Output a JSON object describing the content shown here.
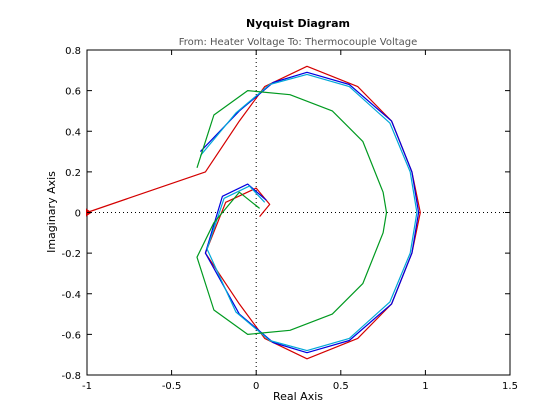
{
  "chart_data": {
    "type": "line",
    "title": "Nyquist Diagram",
    "subtitle": "From: Heater Voltage  To: Thermocouple Voltage",
    "xlabel": "Real Axis",
    "ylabel": "Imaginary Axis",
    "xlim": [
      -1,
      1.5
    ],
    "ylim": [
      -0.8,
      0.8
    ],
    "xticks": [
      -1,
      -0.5,
      0,
      0.5,
      1,
      1.5
    ],
    "yticks": [
      -0.8,
      -0.6,
      -0.4,
      -0.2,
      0,
      0.2,
      0.4,
      0.6,
      0.8
    ],
    "xtick_labels": [
      "-1",
      "-0.5",
      "0",
      "0.5",
      "1",
      "1.5"
    ],
    "ytick_labels": [
      "-0.8",
      "-0.6",
      "-0.4",
      "-0.2",
      "0",
      "0.2",
      "0.4",
      "0.6",
      "0.8"
    ],
    "grid": false,
    "reference_lines": {
      "x": 0,
      "y": 0
    },
    "critical_point": [
      -1,
      0
    ],
    "series": [
      {
        "color": "#d40000",
        "points": [
          [
            -1,
            0
          ],
          [
            -0.3,
            0.2
          ],
          [
            -0.1,
            0.45
          ],
          [
            0.05,
            0.62
          ],
          [
            0.3,
            0.72
          ],
          [
            0.6,
            0.62
          ],
          [
            0.8,
            0.45
          ],
          [
            0.92,
            0.2
          ],
          [
            0.97,
            0
          ],
          [
            0.92,
            -0.2
          ],
          [
            0.8,
            -0.45
          ],
          [
            0.6,
            -0.62
          ],
          [
            0.3,
            -0.72
          ],
          [
            0.05,
            -0.62
          ],
          [
            -0.1,
            -0.45
          ],
          [
            -0.3,
            -0.2
          ],
          [
            -0.18,
            0.05
          ],
          [
            0,
            0.12
          ],
          [
            0.08,
            0.04
          ],
          [
            0.02,
            -0.02
          ]
        ]
      },
      {
        "color": "#0000e0",
        "points": [
          [
            -0.33,
            0.3
          ],
          [
            -0.1,
            0.5
          ],
          [
            0.1,
            0.64
          ],
          [
            0.3,
            0.69
          ],
          [
            0.55,
            0.63
          ],
          [
            0.8,
            0.45
          ],
          [
            0.92,
            0.2
          ],
          [
            0.96,
            0
          ],
          [
            0.92,
            -0.2
          ],
          [
            0.8,
            -0.45
          ],
          [
            0.55,
            -0.63
          ],
          [
            0.3,
            -0.69
          ],
          [
            0.1,
            -0.64
          ],
          [
            -0.1,
            -0.5
          ],
          [
            -0.3,
            -0.2
          ],
          [
            -0.2,
            0.08
          ],
          [
            -0.05,
            0.14
          ],
          [
            0.06,
            0.06
          ]
        ]
      },
      {
        "color": "#00a8d8",
        "points": [
          [
            -0.33,
            0.28
          ],
          [
            -0.12,
            0.49
          ],
          [
            0.08,
            0.63
          ],
          [
            0.3,
            0.68
          ],
          [
            0.55,
            0.62
          ],
          [
            0.79,
            0.44
          ],
          [
            0.91,
            0.2
          ],
          [
            0.95,
            0
          ],
          [
            0.91,
            -0.2
          ],
          [
            0.79,
            -0.44
          ],
          [
            0.55,
            -0.62
          ],
          [
            0.3,
            -0.68
          ],
          [
            0.08,
            -0.63
          ],
          [
            -0.12,
            -0.49
          ],
          [
            -0.29,
            -0.18
          ],
          [
            -0.19,
            0.07
          ],
          [
            -0.04,
            0.13
          ],
          [
            0.05,
            0.05
          ]
        ]
      },
      {
        "color": "#009a20",
        "points": [
          [
            -0.35,
            0.22
          ],
          [
            -0.25,
            0.48
          ],
          [
            -0.05,
            0.6
          ],
          [
            0.2,
            0.58
          ],
          [
            0.45,
            0.5
          ],
          [
            0.63,
            0.35
          ],
          [
            0.75,
            0.1
          ],
          [
            0.77,
            0
          ],
          [
            0.75,
            -0.1
          ],
          [
            0.63,
            -0.35
          ],
          [
            0.45,
            -0.5
          ],
          [
            0.2,
            -0.58
          ],
          [
            -0.05,
            -0.6
          ],
          [
            -0.25,
            -0.48
          ],
          [
            -0.35,
            -0.22
          ],
          [
            -0.25,
            -0.05
          ],
          [
            -0.1,
            0.1
          ],
          [
            0.02,
            0.02
          ]
        ]
      }
    ]
  }
}
